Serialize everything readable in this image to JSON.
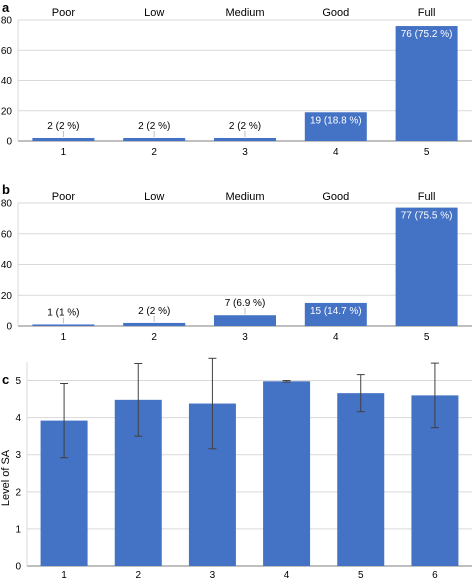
{
  "colors": {
    "bar": "#4472c4",
    "grid": "#d9d9d9",
    "axis": "#7f7f7f",
    "text": "#000000",
    "error": "#404040"
  },
  "chart_data": [
    {
      "panel_label": "a",
      "type": "bar",
      "level_labels": [
        "Poor",
        "Low",
        "Medium",
        "Good",
        "Full"
      ],
      "categories": [
        "1",
        "2",
        "3",
        "4",
        "5"
      ],
      "values": [
        2,
        2,
        2,
        19,
        76
      ],
      "data_labels": [
        "2 (2 %)",
        "2 (2 %)",
        "2 (2 %)",
        "19 (18.8 %)",
        "76 (75.2 %)"
      ],
      "ylim": [
        0,
        80
      ],
      "yticks": [
        0,
        20,
        40,
        60,
        80
      ],
      "grid": true
    },
    {
      "panel_label": "b",
      "type": "bar",
      "level_labels": [
        "Poor",
        "Low",
        "Medium",
        "Good",
        "Full"
      ],
      "categories": [
        "1",
        "2",
        "3",
        "4",
        "5"
      ],
      "values": [
        1,
        2,
        7,
        15,
        77
      ],
      "data_labels": [
        "1 (1 %)",
        "2 (2 %)",
        "7 (6.9 %)",
        "15 (14.7 %)",
        "77 (75.5 %)"
      ],
      "ylim": [
        0,
        80
      ],
      "yticks": [
        0,
        20,
        40,
        60,
        80
      ],
      "grid": true
    },
    {
      "panel_label": "c",
      "type": "bar",
      "categories": [
        "1",
        "2",
        "3",
        "4",
        "5",
        "6"
      ],
      "values": [
        3.92,
        4.48,
        4.38,
        4.98,
        4.66,
        4.6
      ],
      "error": [
        1.0,
        0.98,
        1.22,
        0.02,
        0.5,
        0.87
      ],
      "ylabel": "Level of SA",
      "ylim": [
        0,
        5.5
      ],
      "yticks": [
        0,
        1,
        2,
        3,
        4,
        5
      ],
      "grid": true
    }
  ]
}
